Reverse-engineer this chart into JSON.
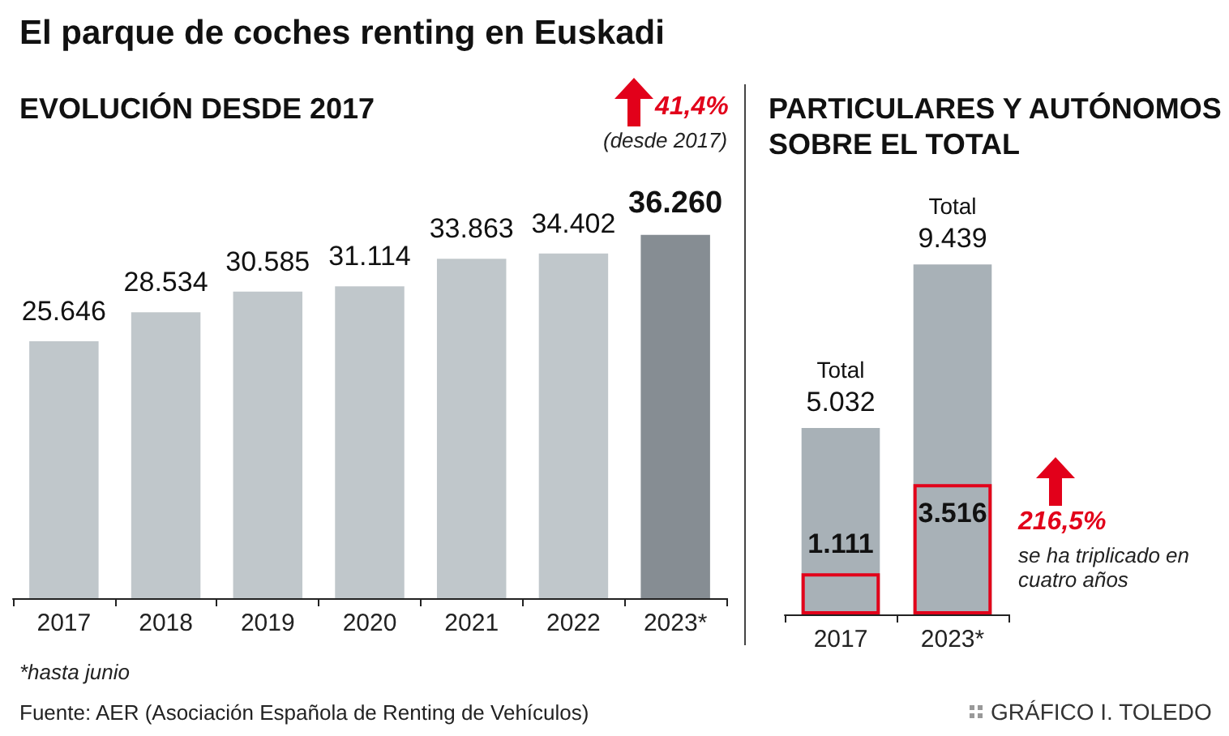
{
  "chart_data": [
    {
      "type": "bar",
      "title": "El parque de coches renting en Euskadi",
      "subtitle": "EVOLUCIÓN DESDE 2017",
      "categories": [
        "2017",
        "2018",
        "2019",
        "2020",
        "2021",
        "2022",
        "2023*"
      ],
      "values": [
        25646,
        28534,
        30585,
        31114,
        33863,
        34402,
        36260
      ],
      "value_labels": [
        "25.646",
        "28.534",
        "30.585",
        "31.114",
        "33.863",
        "34.402",
        "36.260"
      ],
      "colors": [
        "#c0c7cb",
        "#c0c7cb",
        "#c0c7cb",
        "#c0c7cb",
        "#c0c7cb",
        "#c0c7cb",
        "#868d93"
      ],
      "annotations": [
        "41,4%",
        "(desde 2017)",
        "*hasta junio",
        "Fuente: AER (Asociación Española de Renting de Vehículos)",
        "GRÁFICO I. TOLEDO"
      ],
      "grid": false,
      "legend": false
    },
    {
      "type": "bar",
      "title": "PARTICULARES Y AUTÓNOMOS SOBRE EL TOTAL",
      "categories": [
        "2017",
        "2023*"
      ],
      "series": [
        {
          "name": "Total",
          "color": "#a8b1b7",
          "values": [
            5032,
            9439
          ],
          "value_labels": [
            "5.032",
            "9.439"
          ]
        },
        {
          "color": "#e2001a",
          "values": [
            1111,
            3516
          ],
          "value_labels": [
            "1.111",
            "3.516"
          ]
        }
      ],
      "annotations": [
        "216,5%",
        "se ha triplicado en cuatro años"
      ],
      "grid": false,
      "legend": false
    }
  ]
}
